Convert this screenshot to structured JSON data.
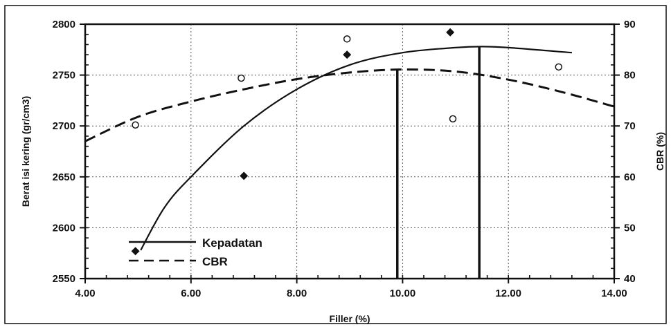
{
  "chart_data": {
    "type": "line",
    "xlabel": "Filler (%)",
    "ylabel_left": "Berat isi kering (gr/cm3)",
    "ylabel_right": "CBR (%)",
    "xlim": [
      4.0,
      14.0
    ],
    "ylim_left": [
      2550,
      2800
    ],
    "ylim_right": [
      40,
      90
    ],
    "x_ticks": [
      "4.00",
      "6.00",
      "8.00",
      "10.00",
      "12.00",
      "14.00"
    ],
    "y_ticks_left": [
      "2550",
      "2600",
      "2650",
      "2700",
      "2750",
      "2800"
    ],
    "y_ticks_right": [
      "40",
      "50",
      "60",
      "70",
      "80",
      "90"
    ],
    "grid": true,
    "legend_position": "bottom-left",
    "series": [
      {
        "name": "Kepadatan",
        "axis": "left",
        "line_style": "solid",
        "marker": "filled-diamond",
        "points": [
          {
            "x": 4.95,
            "y": 2577
          },
          {
            "x": 7.0,
            "y": 2651
          },
          {
            "x": 8.95,
            "y": 2770
          },
          {
            "x": 10.9,
            "y": 2792
          }
        ],
        "curve": [
          {
            "x": 5.05,
            "y": 2578
          },
          {
            "x": 5.5,
            "y": 2620
          },
          {
            "x": 6.0,
            "y": 2650
          },
          {
            "x": 7.0,
            "y": 2700
          },
          {
            "x": 8.0,
            "y": 2736
          },
          {
            "x": 9.0,
            "y": 2760
          },
          {
            "x": 10.0,
            "y": 2772
          },
          {
            "x": 11.0,
            "y": 2777
          },
          {
            "x": 11.5,
            "y": 2778
          },
          {
            "x": 12.0,
            "y": 2777
          },
          {
            "x": 13.2,
            "y": 2772
          }
        ],
        "optimum_x": 11.45,
        "optimum_y": 2778
      },
      {
        "name": "CBR",
        "axis": "right",
        "line_style": "dashed",
        "marker": "open-circle",
        "points": [
          {
            "x": 4.95,
            "y": 70.2
          },
          {
            "x": 6.95,
            "y": 79.4
          },
          {
            "x": 8.95,
            "y": 87.1
          },
          {
            "x": 10.95,
            "y": 71.4
          },
          {
            "x": 12.95,
            "y": 81.6
          }
        ],
        "curve": [
          {
            "x": 4.0,
            "y": 67.0
          },
          {
            "x": 5.0,
            "y": 71.8
          },
          {
            "x": 6.0,
            "y": 74.8
          },
          {
            "x": 7.0,
            "y": 77.2
          },
          {
            "x": 8.0,
            "y": 79.2
          },
          {
            "x": 9.0,
            "y": 80.5
          },
          {
            "x": 10.0,
            "y": 81.1
          },
          {
            "x": 11.0,
            "y": 80.7
          },
          {
            "x": 12.0,
            "y": 79.1
          },
          {
            "x": 13.0,
            "y": 76.7
          },
          {
            "x": 14.0,
            "y": 73.8
          }
        ],
        "optimum_x": 9.9,
        "optimum_y": 81
      }
    ]
  }
}
